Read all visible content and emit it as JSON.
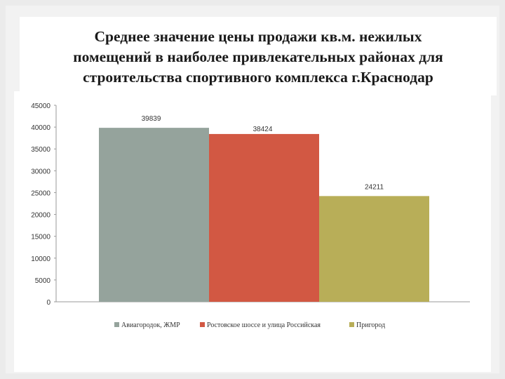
{
  "slide": {
    "title_lines": [
      "Среднее значение цены продажи кв.м. нежилых",
      "помещений в наиболее привлекательных районах для",
      "строительства спортивного комплекса г.Краснодар"
    ]
  },
  "chart_data": {
    "type": "bar",
    "title": "",
    "xlabel": "",
    "ylabel": "",
    "ylim": [
      0,
      45000
    ],
    "yticks": [
      0,
      5000,
      10000,
      15000,
      20000,
      25000,
      30000,
      35000,
      40000,
      45000
    ],
    "grid": false,
    "legend_position": "bottom",
    "series": [
      {
        "name": "Авиагородок, ЖМР",
        "values": [
          39839
        ],
        "color": "#95a39c"
      },
      {
        "name": "Ростовское шоссе и улица Российская",
        "values": [
          38424
        ],
        "color": "#d25843"
      },
      {
        "name": "Пригород",
        "values": [
          24211
        ],
        "color": "#b8ae58"
      }
    ],
    "data_labels": [
      "39839",
      "38424",
      "24211"
    ]
  }
}
